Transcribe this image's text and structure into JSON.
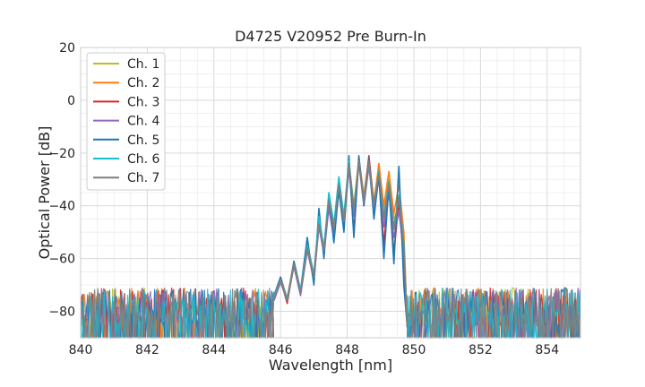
{
  "chart_data": {
    "type": "line",
    "title": "D4725 V20952 Pre Burn-In",
    "xlabel": "Wavelength [nm]",
    "ylabel": "Optical Power [dB]",
    "xlim": [
      840,
      855
    ],
    "ylim": [
      -90,
      20
    ],
    "xticks": [
      "840",
      "842",
      "844",
      "846",
      "848",
      "850",
      "852",
      "854"
    ],
    "yticks": [
      "20",
      "0",
      "−20",
      "−40",
      "−60",
      "−80"
    ],
    "grid": true,
    "legend_position": "top-left",
    "series": [
      {
        "name": "Ch. 1",
        "color": "#bcbd22",
        "x": [
          845.8,
          846.0,
          846.2,
          846.4,
          846.6,
          846.8,
          847.0,
          847.15,
          847.3,
          847.45,
          847.6,
          847.75,
          847.9,
          848.05,
          848.2,
          848.35,
          848.5,
          848.65,
          848.8,
          848.95,
          849.1,
          849.25,
          849.4,
          849.55,
          849.7,
          849.8
        ],
        "y": [
          -75,
          -68,
          -76,
          -62,
          -73,
          -55,
          -67,
          -46,
          -57,
          -38,
          -48,
          -30,
          -44,
          -23,
          -40,
          -22,
          -36,
          -22,
          -38,
          -26,
          -42,
          -30,
          -45,
          -40,
          -55,
          -85
        ]
      },
      {
        "name": "Ch. 2",
        "color": "#ff7f0e",
        "x": [
          845.8,
          846.0,
          846.2,
          846.4,
          846.6,
          846.8,
          847.0,
          847.15,
          847.3,
          847.45,
          847.6,
          847.75,
          847.9,
          848.05,
          848.2,
          848.35,
          848.5,
          848.65,
          848.8,
          848.95,
          849.1,
          849.25,
          849.4,
          849.55,
          849.7,
          849.8
        ],
        "y": [
          -74,
          -67,
          -75,
          -61,
          -72,
          -54,
          -66,
          -45,
          -56,
          -37,
          -48,
          -32,
          -45,
          -24,
          -41,
          -22,
          -37,
          -23,
          -39,
          -24,
          -40,
          -27,
          -43,
          -32,
          -50,
          -85
        ]
      },
      {
        "name": "Ch. 3",
        "color": "#d62728",
        "x": [
          845.8,
          846.0,
          846.2,
          846.4,
          846.6,
          846.8,
          847.0,
          847.15,
          847.3,
          847.45,
          847.6,
          847.75,
          847.9,
          848.05,
          848.2,
          848.35,
          848.5,
          848.65,
          848.8,
          848.95,
          849.1,
          849.25,
          849.4,
          849.55,
          849.7,
          849.8
        ],
        "y": [
          -75,
          -68,
          -77,
          -62,
          -73,
          -56,
          -68,
          -47,
          -58,
          -39,
          -50,
          -33,
          -47,
          -23,
          -50,
          -22,
          -38,
          -21,
          -40,
          -27,
          -55,
          -31,
          -58,
          -38,
          -62,
          -85
        ]
      },
      {
        "name": "Ch. 4",
        "color": "#9467bd",
        "x": [
          845.8,
          846.0,
          846.2,
          846.4,
          846.6,
          846.8,
          847.0,
          847.15,
          847.3,
          847.45,
          847.6,
          847.75,
          847.9,
          848.05,
          848.2,
          848.35,
          848.5,
          848.65,
          848.8,
          848.95,
          849.1,
          849.25,
          849.4,
          849.55,
          849.7,
          849.8
        ],
        "y": [
          -76,
          -69,
          -76,
          -63,
          -74,
          -57,
          -68,
          -48,
          -58,
          -41,
          -52,
          -34,
          -48,
          -26,
          -44,
          -24,
          -40,
          -25,
          -42,
          -30,
          -48,
          -35,
          -52,
          -42,
          -58,
          -86
        ]
      },
      {
        "name": "Ch. 5",
        "color": "#1f77b4",
        "x": [
          845.8,
          846.0,
          846.2,
          846.4,
          846.6,
          846.8,
          847.0,
          847.15,
          847.3,
          847.45,
          847.6,
          847.75,
          847.9,
          848.05,
          848.2,
          848.35,
          848.5,
          848.65,
          848.8,
          848.95,
          849.1,
          849.25,
          849.4,
          849.55,
          849.7,
          849.8
        ],
        "y": [
          -74,
          -67,
          -76,
          -61,
          -72,
          -52,
          -70,
          -41,
          -60,
          -36,
          -54,
          -34,
          -50,
          -21,
          -52,
          -21,
          -40,
          -22,
          -45,
          -28,
          -60,
          -32,
          -62,
          -25,
          -70,
          -86
        ]
      },
      {
        "name": "Ch. 6",
        "color": "#17becf",
        "x": [
          845.8,
          846.0,
          846.2,
          846.4,
          846.6,
          846.8,
          847.0,
          847.15,
          847.3,
          847.45,
          847.6,
          847.75,
          847.9,
          848.05,
          848.2,
          848.35,
          848.5,
          848.65,
          848.8,
          848.95,
          849.1,
          849.25,
          849.4,
          849.55,
          849.7,
          849.8
        ],
        "y": [
          -74,
          -68,
          -75,
          -62,
          -72,
          -55,
          -66,
          -44,
          -56,
          -35,
          -47,
          -29,
          -44,
          -23,
          -41,
          -23,
          -38,
          -24,
          -40,
          -27,
          -44,
          -31,
          -48,
          -36,
          -54,
          -86
        ]
      },
      {
        "name": "Ch. 7",
        "color": "#7f7f7f",
        "x": [
          845.8,
          846.0,
          846.2,
          846.4,
          846.6,
          846.8,
          847.0,
          847.15,
          847.3,
          847.45,
          847.6,
          847.75,
          847.9,
          848.05,
          848.2,
          848.35,
          848.5,
          848.65,
          848.8,
          848.95,
          849.1,
          849.25,
          849.4,
          849.55,
          849.7,
          849.8
        ],
        "y": [
          -75,
          -68,
          -76,
          -62,
          -73,
          -56,
          -67,
          -47,
          -57,
          -38,
          -49,
          -32,
          -46,
          -24,
          -42,
          -23,
          -39,
          -23,
          -40,
          -28,
          -45,
          -32,
          -49,
          -37,
          -56,
          -86
        ]
      }
    ]
  }
}
